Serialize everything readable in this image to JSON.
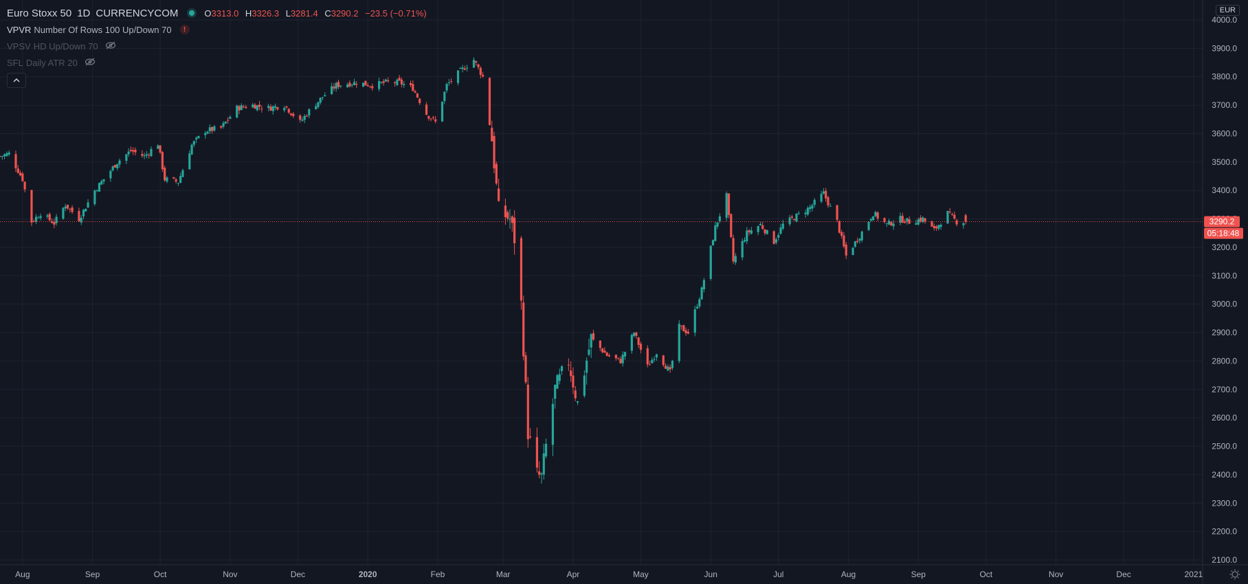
{
  "header": {
    "symbol": "Euro Stoxx 50",
    "interval": "1D",
    "exchange": "CURRENCYCOM",
    "ohlc": {
      "o_label": "O",
      "o": "3313.0",
      "h_label": "H",
      "h": "3326.3",
      "l_label": "L",
      "l": "3281.4",
      "c_label": "C",
      "c": "3290.2",
      "change": "−23.5 (−0.71%)"
    }
  },
  "indicators": [
    {
      "name": "VPVR",
      "args": "Number Of Rows 100 Up/Down 70",
      "icon": "warning-icon"
    },
    {
      "name": "VPSV",
      "args": "HD Up/Down 70",
      "icon": "eye-off-icon"
    },
    {
      "name": "SFL",
      "args": "Daily ATR 20",
      "icon": "eye-off-icon"
    }
  ],
  "currency_badge": "EUR",
  "colors": {
    "up": "#26a69a",
    "down": "#ef5350",
    "background": "#131722",
    "grid": "#1f2330"
  },
  "chart_data": {
    "type": "candlestick",
    "y_axis": {
      "min": 2100,
      "max": 4000,
      "ticks": [
        "4000.0",
        "3900.0",
        "3800.0",
        "3700.0",
        "3600.0",
        "3500.0",
        "3400.0",
        "3300.0",
        "3200.0",
        "3100.0",
        "3000.0",
        "2900.0",
        "2800.0",
        "2700.0",
        "2600.0",
        "2500.0",
        "2400.0",
        "2300.0",
        "2200.0",
        "2100.0"
      ]
    },
    "x_axis": {
      "start": "2019-07-22",
      "end": "2021-01-05",
      "ticks": [
        {
          "date": "2019-08-01",
          "label": "Aug",
          "bold": false
        },
        {
          "date": "2019-09-01",
          "label": "Sep",
          "bold": false
        },
        {
          "date": "2019-10-01",
          "label": "Oct",
          "bold": false
        },
        {
          "date": "2019-11-01",
          "label": "Nov",
          "bold": false
        },
        {
          "date": "2019-12-01",
          "label": "Dec",
          "bold": false
        },
        {
          "date": "2020-01-01",
          "label": "2020",
          "bold": true
        },
        {
          "date": "2020-02-01",
          "label": "Feb",
          "bold": false
        },
        {
          "date": "2020-03-01",
          "label": "Mar",
          "bold": false
        },
        {
          "date": "2020-04-01",
          "label": "Apr",
          "bold": false
        },
        {
          "date": "2020-05-01",
          "label": "May",
          "bold": false
        },
        {
          "date": "2020-06-01",
          "label": "Jun",
          "bold": false
        },
        {
          "date": "2020-07-01",
          "label": "Jul",
          "bold": false
        },
        {
          "date": "2020-08-01",
          "label": "Aug",
          "bold": false
        },
        {
          "date": "2020-09-01",
          "label": "Sep",
          "bold": false
        },
        {
          "date": "2020-10-01",
          "label": "Oct",
          "bold": false
        },
        {
          "date": "2020-11-01",
          "label": "Nov",
          "bold": false
        },
        {
          "date": "2020-12-01",
          "label": "Dec",
          "bold": false
        },
        {
          "date": "2021-01-01",
          "label": "2021",
          "bold": false
        }
      ]
    },
    "last_price": 3290.2,
    "last_price_label": "3290.2",
    "countdown_label": "05:18:48",
    "grid": true,
    "series": [
      {
        "date": "2019-07-22",
        "close": 3520
      },
      {
        "date": "2019-07-26",
        "close": 3530
      },
      {
        "date": "2019-08-01",
        "close": 3440
      },
      {
        "date": "2019-08-05",
        "close": 3290
      },
      {
        "date": "2019-08-09",
        "close": 3320
      },
      {
        "date": "2019-08-15",
        "close": 3285
      },
      {
        "date": "2019-08-20",
        "close": 3350
      },
      {
        "date": "2019-08-26",
        "close": 3300
      },
      {
        "date": "2019-09-02",
        "close": 3400
      },
      {
        "date": "2019-09-06",
        "close": 3440
      },
      {
        "date": "2019-09-12",
        "close": 3500
      },
      {
        "date": "2019-09-18",
        "close": 3540
      },
      {
        "date": "2019-09-24",
        "close": 3520
      },
      {
        "date": "2019-09-30",
        "close": 3565
      },
      {
        "date": "2019-10-03",
        "close": 3440
      },
      {
        "date": "2019-10-09",
        "close": 3430
      },
      {
        "date": "2019-10-15",
        "close": 3560
      },
      {
        "date": "2019-10-21",
        "close": 3610
      },
      {
        "date": "2019-10-28",
        "close": 3620
      },
      {
        "date": "2019-11-04",
        "close": 3690
      },
      {
        "date": "2019-11-11",
        "close": 3700
      },
      {
        "date": "2019-11-18",
        "close": 3690
      },
      {
        "date": "2019-11-25",
        "close": 3700
      },
      {
        "date": "2019-12-02",
        "close": 3640
      },
      {
        "date": "2019-12-06",
        "close": 3680
      },
      {
        "date": "2019-12-12",
        "close": 3730
      },
      {
        "date": "2019-12-18",
        "close": 3770
      },
      {
        "date": "2019-12-27",
        "close": 3780
      },
      {
        "date": "2020-01-03",
        "close": 3770
      },
      {
        "date": "2020-01-09",
        "close": 3780
      },
      {
        "date": "2020-01-15",
        "close": 3780
      },
      {
        "date": "2020-01-21",
        "close": 3760
      },
      {
        "date": "2020-01-27",
        "close": 3670
      },
      {
        "date": "2020-01-31",
        "close": 3640
      },
      {
        "date": "2020-02-05",
        "close": 3770
      },
      {
        "date": "2020-02-11",
        "close": 3820
      },
      {
        "date": "2020-02-17",
        "close": 3860
      },
      {
        "date": "2020-02-21",
        "close": 3800
      },
      {
        "date": "2020-02-25",
        "close": 3580
      },
      {
        "date": "2020-02-28",
        "close": 3330
      },
      {
        "date": "2020-03-04",
        "close": 3300
      },
      {
        "date": "2020-03-06",
        "close": 3230
      },
      {
        "date": "2020-03-09",
        "close": 3000
      },
      {
        "date": "2020-03-12",
        "close": 2550
      },
      {
        "date": "2020-03-16",
        "close": 2400
      },
      {
        "date": "2020-03-18",
        "close": 2390
      },
      {
        "date": "2020-03-20",
        "close": 2500
      },
      {
        "date": "2020-03-24",
        "close": 2700
      },
      {
        "date": "2020-03-30",
        "close": 2800
      },
      {
        "date": "2020-04-03",
        "close": 2650
      },
      {
        "date": "2020-04-09",
        "close": 2880
      },
      {
        "date": "2020-04-16",
        "close": 2820
      },
      {
        "date": "2020-04-22",
        "close": 2800
      },
      {
        "date": "2020-04-28",
        "close": 2900
      },
      {
        "date": "2020-05-04",
        "close": 2780
      },
      {
        "date": "2020-05-08",
        "close": 2830
      },
      {
        "date": "2020-05-14",
        "close": 2760
      },
      {
        "date": "2020-05-18",
        "close": 2920
      },
      {
        "date": "2020-05-22",
        "close": 2900
      },
      {
        "date": "2020-05-28",
        "close": 3050
      },
      {
        "date": "2020-06-03",
        "close": 3270
      },
      {
        "date": "2020-06-08",
        "close": 3380
      },
      {
        "date": "2020-06-11",
        "close": 3150
      },
      {
        "date": "2020-06-17",
        "close": 3250
      },
      {
        "date": "2020-06-23",
        "close": 3280
      },
      {
        "date": "2020-06-29",
        "close": 3220
      },
      {
        "date": "2020-07-03",
        "close": 3280
      },
      {
        "date": "2020-07-09",
        "close": 3310
      },
      {
        "date": "2020-07-15",
        "close": 3340
      },
      {
        "date": "2020-07-21",
        "close": 3390
      },
      {
        "date": "2020-07-27",
        "close": 3290
      },
      {
        "date": "2020-07-31",
        "close": 3170
      },
      {
        "date": "2020-08-06",
        "close": 3240
      },
      {
        "date": "2020-08-12",
        "close": 3320
      },
      {
        "date": "2020-08-18",
        "close": 3280
      },
      {
        "date": "2020-08-24",
        "close": 3300
      },
      {
        "date": "2020-08-28",
        "close": 3290
      },
      {
        "date": "2020-09-03",
        "close": 3300
      },
      {
        "date": "2020-09-08",
        "close": 3260
      },
      {
        "date": "2020-09-14",
        "close": 3320
      },
      {
        "date": "2020-09-18",
        "close": 3290
      },
      {
        "date": "2020-09-22",
        "close": 3290
      }
    ]
  }
}
